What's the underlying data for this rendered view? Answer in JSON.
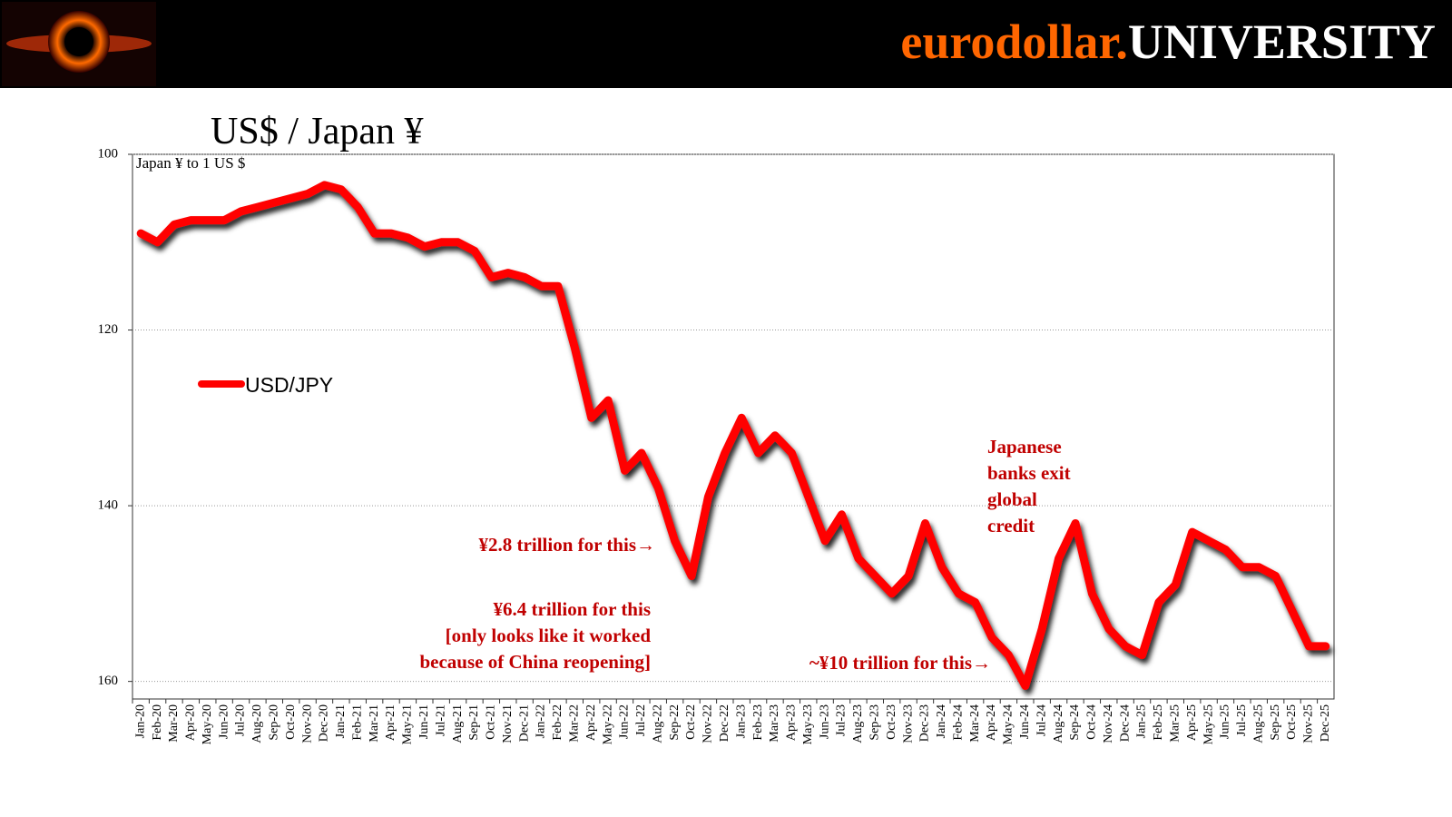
{
  "header": {
    "brand_first": "eurodollar.",
    "brand_second": "UNIVERSITY"
  },
  "chart_data": {
    "type": "line",
    "title": "US$ / Japan ¥",
    "y_label": "Japan ¥ to 1 US $",
    "y_inverted": true,
    "grid": true,
    "ylim": [
      100,
      162
    ],
    "yticks": [
      100,
      120,
      140,
      160
    ],
    "categories": [
      "Jan-20",
      "Feb-20",
      "Mar-20",
      "Apr-20",
      "May-20",
      "Jun-20",
      "Jul-20",
      "Aug-20",
      "Sep-20",
      "Oct-20",
      "Nov-20",
      "Dec-20",
      "Jan-21",
      "Feb-21",
      "Mar-21",
      "Apr-21",
      "May-21",
      "Jun-21",
      "Jul-21",
      "Aug-21",
      "Sep-21",
      "Oct-21",
      "Nov-21",
      "Dec-21",
      "Jan-22",
      "Feb-22",
      "Mar-22",
      "Apr-22",
      "May-22",
      "Jun-22",
      "Jul-22",
      "Aug-22",
      "Sep-22",
      "Oct-22",
      "Nov-22",
      "Dec-22",
      "Jan-23",
      "Feb-23",
      "Mar-23",
      "Apr-23",
      "May-23",
      "Jun-23",
      "Jul-23",
      "Aug-23",
      "Sep-23",
      "Oct-23",
      "Nov-23",
      "Dec-23",
      "Jan-24",
      "Feb-24",
      "Mar-24",
      "Apr-24",
      "May-24",
      "Jun-24",
      "Jul-24",
      "Aug-24",
      "Sep-24",
      "Oct-24",
      "Nov-24",
      "Dec-24",
      "Jan-25",
      "Feb-25",
      "Mar-25",
      "Apr-25",
      "May-25",
      "Jun-25",
      "Jul-25",
      "Aug-25",
      "Sep-25",
      "Oct-25",
      "Nov-25",
      "Dec-25"
    ],
    "series": [
      {
        "name": "USD/JPY",
        "color": "#ff0000",
        "values": [
          109,
          110,
          108,
          107.5,
          107.5,
          107.5,
          106.5,
          106,
          105.5,
          105,
          104.5,
          103.5,
          104,
          106,
          109,
          109,
          109.5,
          110.5,
          110,
          110,
          111,
          114,
          113.5,
          114,
          115,
          115,
          122,
          130,
          128,
          136,
          134,
          138,
          144,
          148,
          139,
          134,
          130,
          134,
          132,
          134,
          139,
          144,
          141,
          146,
          148,
          150,
          148,
          142,
          147,
          150,
          151,
          155,
          157,
          160.5,
          154,
          146,
          142,
          150,
          154,
          156,
          157,
          151,
          149,
          143,
          144,
          145,
          147,
          147,
          148,
          152,
          156,
          156
        ]
      }
    ],
    "annotations": [
      {
        "lines": [
          "¥2.8 trillion for this→"
        ]
      },
      {
        "lines": [
          "¥6.4 trillion for this",
          "[only looks like it worked",
          "because of China reopening]"
        ]
      },
      {
        "lines": [
          "~¥10 trillion for this→"
        ]
      },
      {
        "lines": [
          "Japanese",
          "banks exit",
          "global",
          "credit"
        ]
      }
    ]
  }
}
